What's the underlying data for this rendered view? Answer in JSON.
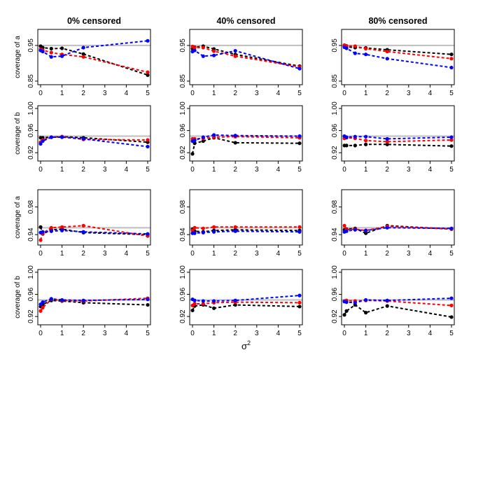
{
  "chart_data": {
    "type": "line",
    "grid_layout": "4 rows by 3 columns of small panels",
    "column_titles": [
      "0% censored",
      "40% censored",
      "80% censored"
    ],
    "row_ylabels": [
      "coverage of a",
      "coverage of b",
      "coverage of a",
      "coverage of b"
    ],
    "x_values": [
      0,
      0.1,
      0.5,
      1,
      2,
      5
    ],
    "x_ticks": [
      0,
      1,
      2,
      3,
      4,
      5
    ],
    "x_tick_labels": [
      "0",
      "1",
      "2",
      "3",
      "4",
      "5"
    ],
    "xlabel_base": "σ",
    "xlabel_sup": "2",
    "reference_line": 0.95,
    "reference_color": "#bebebe",
    "series_colors": [
      "#000000",
      "#ff0000",
      "#0000ff"
    ],
    "rows": [
      {
        "ylim": [
          0.84,
          0.995
        ],
        "yticks": [
          0.85,
          0.95
        ],
        "ytick_labels": [
          "0.85",
          "0.95"
        ]
      },
      {
        "ylim": [
          0.905,
          1.005
        ],
        "yticks": [
          0.92,
          0.96,
          1.0
        ],
        "ytick_labels": [
          "0.92",
          "0.96",
          "1.00"
        ]
      },
      {
        "ylim": [
          0.925,
          1.005
        ],
        "yticks": [
          0.94,
          0.98
        ],
        "ytick_labels": [
          "0.94",
          "0.98"
        ]
      },
      {
        "ylim": [
          0.905,
          1.005
        ],
        "yticks": [
          0.92,
          0.96,
          1.0
        ],
        "ytick_labels": [
          "0.92",
          "0.96",
          "1.00"
        ]
      }
    ],
    "panels": [
      [
        {
          "title": "0% censored",
          "series": [
            {
              "name": "black",
              "values": [
                0.948,
                0.944,
                0.941,
                0.942,
                0.926,
                0.867
              ]
            },
            {
              "name": "red",
              "values": [
                0.939,
                0.937,
                0.93,
                0.925,
                0.918,
                0.875
              ]
            },
            {
              "name": "blue",
              "values": [
                0.936,
                0.933,
                0.918,
                0.92,
                0.944,
                0.963
              ]
            }
          ]
        },
        {
          "title": "40% censored",
          "series": [
            {
              "name": "black",
              "values": [
                0.941,
                0.945,
                0.948,
                0.94,
                0.925,
                0.892
              ]
            },
            {
              "name": "red",
              "values": [
                0.947,
                0.944,
                0.944,
                0.934,
                0.92,
                0.89
              ]
            },
            {
              "name": "blue",
              "values": [
                0.933,
                0.936,
                0.92,
                0.922,
                0.935,
                0.885
              ]
            }
          ]
        },
        {
          "title": "80% censored",
          "series": [
            {
              "name": "black",
              "values": [
                0.948,
                0.946,
                0.944,
                0.943,
                0.938,
                0.925
              ]
            },
            {
              "name": "red",
              "values": [
                0.951,
                0.949,
                0.948,
                0.941,
                0.933,
                0.913
              ]
            },
            {
              "name": "blue",
              "values": [
                0.945,
                0.942,
                0.928,
                0.925,
                0.913,
                0.888
              ]
            }
          ]
        }
      ],
      [
        {
          "title": "0% censored",
          "series": [
            {
              "name": "black",
              "values": [
                0.947,
                0.947,
                0.948,
                0.949,
                0.947,
                0.939
              ]
            },
            {
              "name": "red",
              "values": [
                0.939,
                0.943,
                0.948,
                0.949,
                0.944,
                0.943
              ]
            },
            {
              "name": "blue",
              "values": [
                0.936,
                0.941,
                0.948,
                0.948,
                0.945,
                0.931
              ]
            }
          ]
        },
        {
          "title": "40% censored",
          "series": [
            {
              "name": "black",
              "values": [
                0.918,
                0.937,
                0.941,
                0.947,
                0.938,
                0.937
              ]
            },
            {
              "name": "red",
              "values": [
                0.945,
                0.945,
                0.946,
                0.948,
                0.949,
                0.947
              ]
            },
            {
              "name": "blue",
              "values": [
                0.941,
                0.942,
                0.948,
                0.952,
                0.951,
                0.95
              ]
            }
          ]
        },
        {
          "title": "80% censored",
          "series": [
            {
              "name": "black",
              "values": [
                0.933,
                0.933,
                0.933,
                0.935,
                0.935,
                0.932
              ]
            },
            {
              "name": "red",
              "values": [
                0.946,
                0.947,
                0.946,
                0.942,
                0.94,
                0.943
              ]
            },
            {
              "name": "blue",
              "values": [
                0.95,
                0.948,
                0.949,
                0.949,
                0.945,
                0.948
              ]
            }
          ]
        }
      ],
      [
        {
          "title": "0% censored",
          "series": [
            {
              "name": "black",
              "values": [
                0.951,
                0.941,
                0.947,
                0.948,
                0.943,
                0.94
              ]
            },
            {
              "name": "red",
              "values": [
                0.932,
                0.942,
                0.95,
                0.951,
                0.953,
                0.938
              ]
            },
            {
              "name": "blue",
              "values": [
                0.943,
                0.944,
                0.945,
                0.946,
                0.944,
                0.941
              ]
            }
          ]
        },
        {
          "title": "40% censored",
          "series": [
            {
              "name": "black",
              "values": [
                0.948,
                0.945,
                0.944,
                0.946,
                0.947,
                0.946
              ]
            },
            {
              "name": "red",
              "values": [
                0.946,
                0.95,
                0.949,
                0.951,
                0.951,
                0.951
              ]
            },
            {
              "name": "blue",
              "values": [
                0.942,
                0.942,
                0.943,
                0.944,
                0.945,
                0.944
              ]
            }
          ]
        },
        {
          "title": "80% censored",
          "series": [
            {
              "name": "black",
              "values": [
                0.947,
                0.948,
                0.949,
                0.942,
                0.953,
                0.948
              ]
            },
            {
              "name": "red",
              "values": [
                0.953,
                0.947,
                0.948,
                0.946,
                0.952,
                0.948
              ]
            },
            {
              "name": "blue",
              "values": [
                0.944,
                0.945,
                0.947,
                0.946,
                0.95,
                0.949
              ]
            }
          ]
        }
      ],
      [
        {
          "title": "0% censored",
          "series": [
            {
              "name": "black",
              "values": [
                0.938,
                0.942,
                0.949,
                0.948,
                0.945,
                0.941
              ]
            },
            {
              "name": "red",
              "values": [
                0.93,
                0.936,
                0.951,
                0.949,
                0.948,
                0.953
              ]
            },
            {
              "name": "blue",
              "values": [
                0.942,
                0.946,
                0.952,
                0.95,
                0.949,
                0.951
              ]
            }
          ]
        },
        {
          "title": "40% censored",
          "series": [
            {
              "name": "black",
              "values": [
                0.931,
                0.939,
                0.941,
                0.935,
                0.941,
                0.938
              ]
            },
            {
              "name": "red",
              "values": [
                0.94,
                0.943,
                0.943,
                0.945,
                0.946,
                0.945
              ]
            },
            {
              "name": "blue",
              "values": [
                0.951,
                0.949,
                0.948,
                0.948,
                0.949,
                0.958
              ]
            }
          ]
        },
        {
          "title": "80% censored",
          "series": [
            {
              "name": "black",
              "values": [
                0.923,
                0.93,
                0.941,
                0.927,
                0.939,
                0.919
              ]
            },
            {
              "name": "red",
              "values": [
                0.948,
                0.949,
                0.948,
                0.949,
                0.948,
                0.94
              ]
            },
            {
              "name": "blue",
              "values": [
                0.947,
                0.946,
                0.945,
                0.95,
                0.949,
                0.953
              ]
            }
          ]
        }
      ]
    ]
  }
}
